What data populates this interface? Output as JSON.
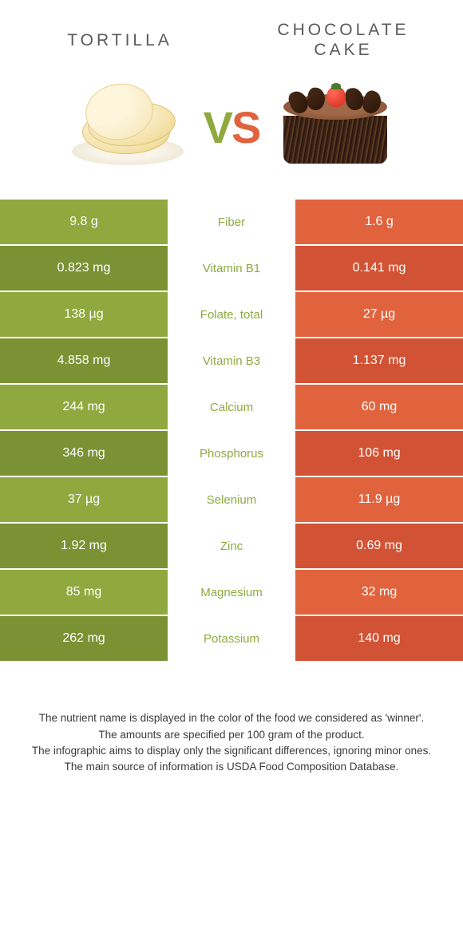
{
  "colors": {
    "left": "#8fa93f",
    "right": "#e0633e",
    "left_dark": "#7a9234",
    "right_dark": "#d15234",
    "label_default": "#888888"
  },
  "header": {
    "left_title": "TORTILLA",
    "right_title": "CHOCOLATE CAKE"
  },
  "vs": {
    "v": "V",
    "s": "S"
  },
  "rows": [
    {
      "left": "9.8 g",
      "label": "Fiber",
      "right": "1.6 g",
      "winner": "left"
    },
    {
      "left": "0.823 mg",
      "label": "Vitamin B1",
      "right": "0.141 mg",
      "winner": "left"
    },
    {
      "left": "138 µg",
      "label": "Folate, total",
      "right": "27 µg",
      "winner": "left"
    },
    {
      "left": "4.858 mg",
      "label": "Vitamin B3",
      "right": "1.137 mg",
      "winner": "left"
    },
    {
      "left": "244 mg",
      "label": "Calcium",
      "right": "60 mg",
      "winner": "left"
    },
    {
      "left": "346 mg",
      "label": "Phosphorus",
      "right": "106 mg",
      "winner": "left"
    },
    {
      "left": "37 µg",
      "label": "Selenium",
      "right": "11.9 µg",
      "winner": "left"
    },
    {
      "left": "1.92 mg",
      "label": "Zinc",
      "right": "0.69 mg",
      "winner": "left"
    },
    {
      "left": "85 mg",
      "label": "Magnesium",
      "right": "32 mg",
      "winner": "left"
    },
    {
      "left": "262 mg",
      "label": "Potassium",
      "right": "140 mg",
      "winner": "left"
    }
  ],
  "footer": {
    "line1": "The nutrient name is displayed in the color of the food we considered as 'winner'.",
    "line2": "The amounts are specified per 100 gram of the product.",
    "line3": "The infographic aims to display only the significant differences, ignoring minor ones.",
    "line4": "The main source of information is USDA Food Composition Database."
  }
}
